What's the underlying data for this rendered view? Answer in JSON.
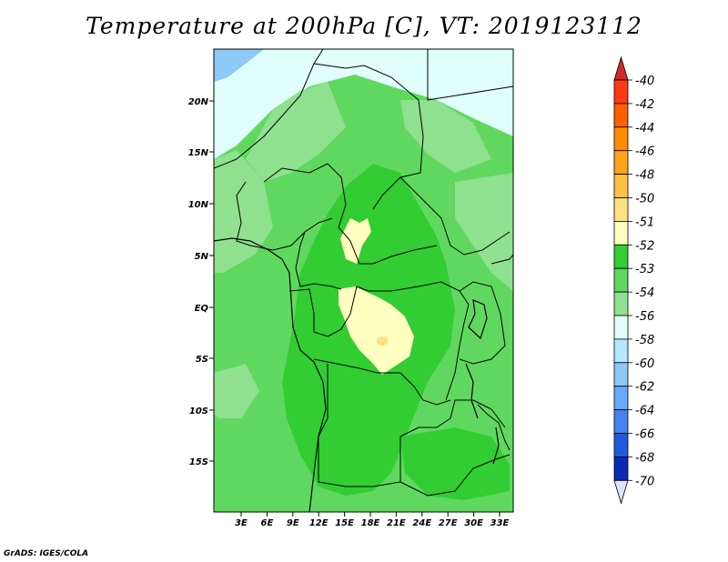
{
  "title": "Temperature at 200hPa [C], VT: 2019123112",
  "credit": "GrADS: IGES/COLA",
  "map": {
    "lat_labels": [
      "20N",
      "15N",
      "10N",
      "5N",
      "EQ",
      "5S",
      "10S",
      "15S"
    ],
    "lon_labels": [
      "3E",
      "6E",
      "9E",
      "12E",
      "15E",
      "18E",
      "21E",
      "24E",
      "27E",
      "30E",
      "33E"
    ]
  },
  "colorbar": {
    "labels": [
      "-40",
      "-42",
      "-44",
      "-46",
      "-48",
      "-50",
      "-51",
      "-52",
      "-53",
      "-54",
      "-56",
      "-58",
      "-60",
      "-62",
      "-64",
      "-66",
      "-68",
      "-70"
    ],
    "colors": [
      "#ff3a14",
      "#ff5f00",
      "#ff8c00",
      "#ffa31a",
      "#ffbf40",
      "#ffe080",
      "#ffffc0",
      "#32cd32",
      "#60d860",
      "#8fe08f",
      "#e0fffa",
      "#b4e6ff",
      "#8ccaf5",
      "#64aaff",
      "#4682eb",
      "#1e5adc",
      "#0a2ab4",
      "#0a0a78"
    ],
    "top_arrow_color": "#d22828",
    "bottom_arrow_color": "#e0e0ff"
  }
}
